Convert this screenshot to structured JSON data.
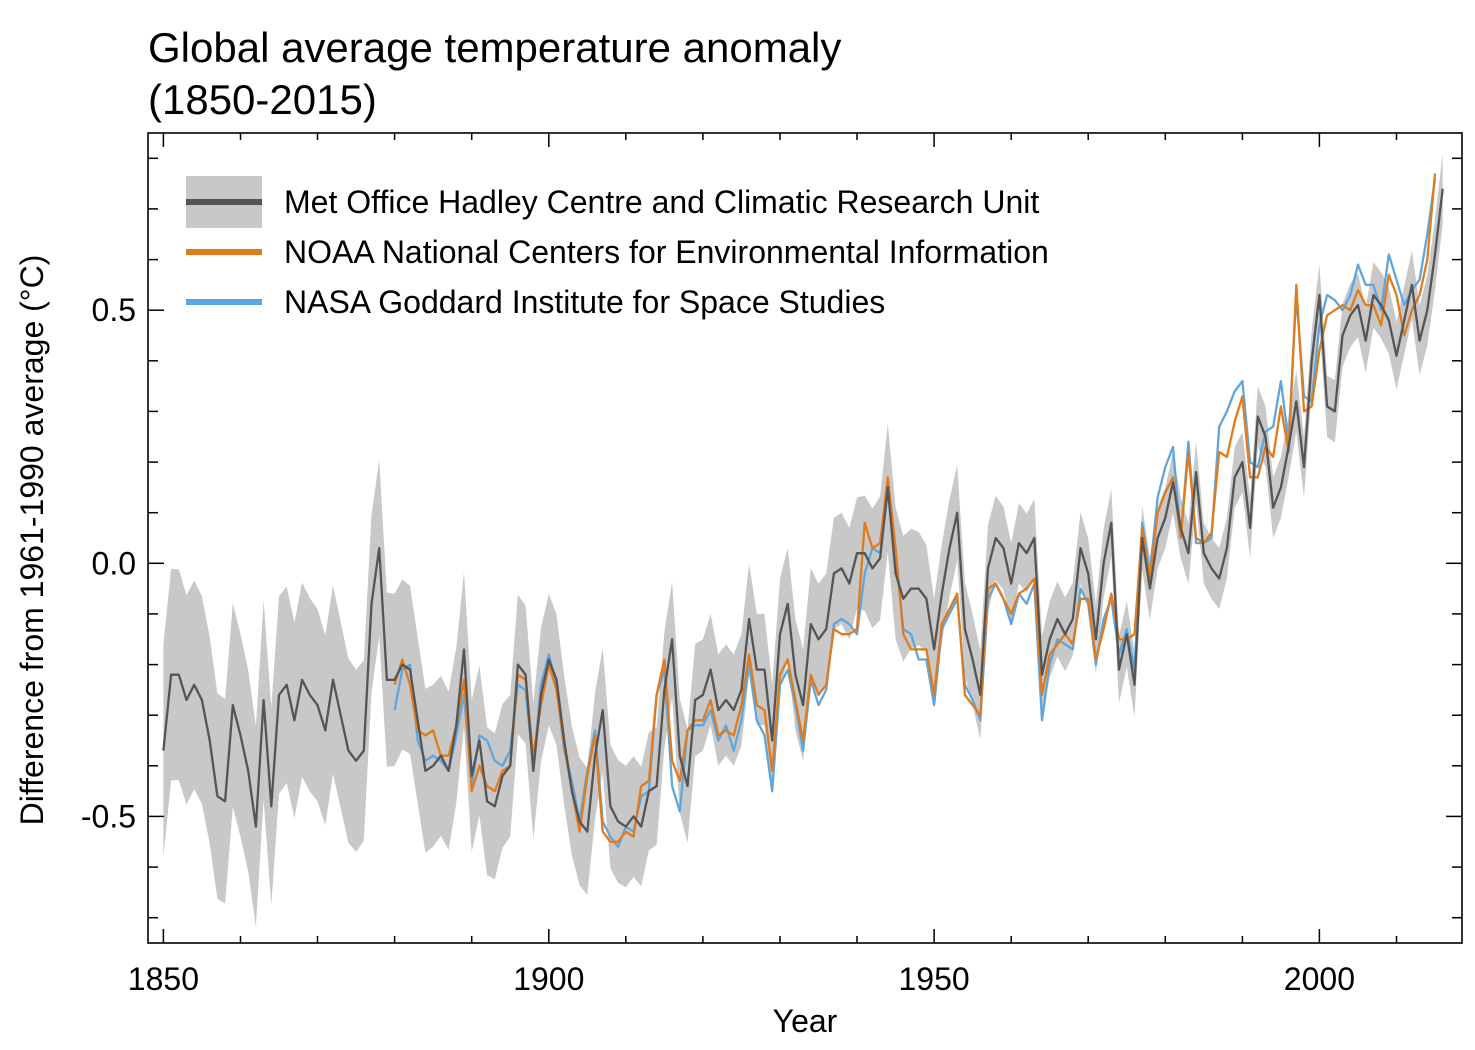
{
  "chart_data": {
    "type": "line",
    "title": "Global average temperature anomaly",
    "subtitle": "(1850-2015)",
    "xlabel": "Year",
    "ylabel": "Difference from 1961-1990 average (°C)",
    "xlim": [
      1848,
      2018.5
    ],
    "ylim": [
      -0.75,
      0.85
    ],
    "xticks": [
      1850,
      1900,
      1950,
      2000
    ],
    "yticks": [
      -0.5,
      0.0,
      0.5
    ],
    "ytick_labels": [
      "-0.5",
      "0.0",
      "0.5"
    ],
    "grid": false,
    "legend_position": "top-left",
    "series": [
      {
        "name": "Met Office Hadley Centre and Climatic Research Unit",
        "color": "#555555",
        "band_color": "#c8c8c8",
        "band_halfwidth": [
          [
            1850,
            0.21
          ],
          [
            1870,
            0.19
          ],
          [
            1880,
            0.17
          ],
          [
            1890,
            0.15
          ],
          [
            1900,
            0.13
          ],
          [
            1920,
            0.11
          ],
          [
            1940,
            0.11
          ],
          [
            1945,
            0.13
          ],
          [
            1950,
            0.1
          ],
          [
            1960,
            0.08
          ],
          [
            1980,
            0.06
          ],
          [
            2000,
            0.06
          ],
          [
            2015,
            0.07
          ]
        ],
        "x_start": 1850,
        "values": [
          -0.37,
          -0.22,
          -0.22,
          -0.27,
          -0.24,
          -0.27,
          -0.35,
          -0.46,
          -0.47,
          -0.28,
          -0.34,
          -0.41,
          -0.52,
          -0.27,
          -0.48,
          -0.26,
          -0.24,
          -0.31,
          -0.23,
          -0.26,
          -0.28,
          -0.33,
          -0.23,
          -0.3,
          -0.37,
          -0.39,
          -0.37,
          -0.08,
          0.03,
          -0.23,
          -0.23,
          -0.2,
          -0.21,
          -0.31,
          -0.41,
          -0.4,
          -0.38,
          -0.41,
          -0.32,
          -0.17,
          -0.42,
          -0.35,
          -0.47,
          -0.48,
          -0.42,
          -0.4,
          -0.2,
          -0.22,
          -0.41,
          -0.26,
          -0.19,
          -0.23,
          -0.35,
          -0.45,
          -0.51,
          -0.53,
          -0.38,
          -0.29,
          -0.48,
          -0.51,
          -0.52,
          -0.5,
          -0.52,
          -0.45,
          -0.44,
          -0.25,
          -0.15,
          -0.38,
          -0.44,
          -0.27,
          -0.26,
          -0.21,
          -0.29,
          -0.27,
          -0.29,
          -0.25,
          -0.11,
          -0.21,
          -0.21,
          -0.35,
          -0.14,
          -0.08,
          -0.22,
          -0.28,
          -0.12,
          -0.15,
          -0.13,
          -0.02,
          -0.01,
          -0.04,
          0.02,
          0.02,
          -0.01,
          0.01,
          0.15,
          -0.02,
          -0.07,
          -0.05,
          -0.05,
          -0.07,
          -0.17,
          -0.06,
          0.03,
          0.1,
          -0.13,
          -0.19,
          -0.26,
          -0.01,
          0.05,
          0.03,
          -0.04,
          0.04,
          0.02,
          0.05,
          -0.22,
          -0.15,
          -0.11,
          -0.14,
          -0.11,
          0.03,
          -0.02,
          -0.15,
          0.0,
          0.08,
          -0.21,
          -0.14,
          -0.24,
          0.05,
          -0.05,
          0.05,
          0.09,
          0.16,
          0.07,
          0.02,
          0.18,
          0.02,
          -0.01,
          -0.03,
          0.03,
          0.17,
          0.2,
          0.07,
          0.29,
          0.25,
          0.11,
          0.15,
          0.23,
          0.32,
          0.19,
          0.4,
          0.53,
          0.31,
          0.3,
          0.45,
          0.49,
          0.51,
          0.44,
          0.53,
          0.51,
          0.48,
          0.41,
          0.48,
          0.55,
          0.44,
          0.5,
          0.61,
          0.74
        ]
      },
      {
        "name": "NOAA National Centers for Environmental Information",
        "color": "#e07b1e",
        "x_start": 1880,
        "values": [
          -0.24,
          -0.19,
          -0.24,
          -0.33,
          -0.34,
          -0.33,
          -0.38,
          -0.38,
          -0.32,
          -0.23,
          -0.45,
          -0.4,
          -0.44,
          -0.45,
          -0.41,
          -0.4,
          -0.22,
          -0.23,
          -0.38,
          -0.28,
          -0.2,
          -0.25,
          -0.36,
          -0.45,
          -0.53,
          -0.42,
          -0.34,
          -0.53,
          -0.55,
          -0.55,
          -0.53,
          -0.54,
          -0.44,
          -0.43,
          -0.26,
          -0.19,
          -0.39,
          -0.43,
          -0.33,
          -0.31,
          -0.31,
          -0.27,
          -0.34,
          -0.33,
          -0.34,
          -0.28,
          -0.18,
          -0.28,
          -0.29,
          -0.41,
          -0.22,
          -0.19,
          -0.27,
          -0.35,
          -0.22,
          -0.26,
          -0.24,
          -0.13,
          -0.14,
          -0.14,
          -0.13,
          0.08,
          0.03,
          0.04,
          0.17,
          0.03,
          -0.14,
          -0.17,
          -0.17,
          -0.17,
          -0.26,
          -0.12,
          -0.09,
          -0.06,
          -0.26,
          -0.28,
          -0.3,
          -0.05,
          -0.04,
          -0.07,
          -0.1,
          -0.06,
          -0.05,
          -0.03,
          -0.26,
          -0.18,
          -0.16,
          -0.14,
          -0.16,
          -0.07,
          -0.07,
          -0.19,
          -0.13,
          -0.06,
          -0.15,
          -0.15,
          -0.14,
          0.07,
          -0.03,
          0.1,
          0.14,
          0.17,
          0.05,
          0.22,
          0.05,
          0.04,
          0.06,
          0.22,
          0.21,
          0.28,
          0.33,
          0.17,
          0.17,
          0.23,
          0.21,
          0.31,
          0.22,
          0.55,
          0.3,
          0.31,
          0.42,
          0.49,
          0.5,
          0.51,
          0.5,
          0.54,
          0.51,
          0.51,
          0.47,
          0.57,
          0.53,
          0.45,
          0.5,
          0.53,
          0.6,
          0.77
        ]
      },
      {
        "name": "NASA Goddard Institute for Space Studies",
        "color": "#5ea6dd",
        "x_start": 1880,
        "values": [
          -0.29,
          -0.21,
          -0.2,
          -0.35,
          -0.39,
          -0.38,
          -0.39,
          -0.41,
          -0.34,
          -0.26,
          -0.44,
          -0.34,
          -0.35,
          -0.39,
          -0.4,
          -0.37,
          -0.24,
          -0.25,
          -0.4,
          -0.24,
          -0.18,
          -0.24,
          -0.37,
          -0.43,
          -0.51,
          -0.41,
          -0.33,
          -0.51,
          -0.54,
          -0.56,
          -0.52,
          -0.53,
          -0.46,
          -0.45,
          -0.26,
          -0.21,
          -0.44,
          -0.49,
          -0.33,
          -0.32,
          -0.32,
          -0.29,
          -0.35,
          -0.32,
          -0.37,
          -0.31,
          -0.2,
          -0.31,
          -0.34,
          -0.45,
          -0.24,
          -0.21,
          -0.28,
          -0.37,
          -0.23,
          -0.28,
          -0.25,
          -0.12,
          -0.11,
          -0.12,
          -0.14,
          -0.02,
          0.03,
          0.02,
          0.14,
          0.02,
          -0.13,
          -0.14,
          -0.19,
          -0.19,
          -0.28,
          -0.13,
          -0.1,
          -0.07,
          -0.24,
          -0.27,
          -0.31,
          -0.07,
          -0.04,
          -0.07,
          -0.12,
          -0.06,
          -0.08,
          -0.04,
          -0.31,
          -0.2,
          -0.15,
          -0.16,
          -0.17,
          -0.05,
          -0.08,
          -0.2,
          -0.11,
          -0.07,
          -0.18,
          -0.13,
          -0.21,
          0.08,
          -0.02,
          0.13,
          0.19,
          0.23,
          0.05,
          0.24,
          0.04,
          0.04,
          0.05,
          0.27,
          0.3,
          0.34,
          0.36,
          0.2,
          0.19,
          0.26,
          0.27,
          0.36,
          0.24,
          0.53,
          0.33,
          0.32,
          0.47,
          0.53,
          0.52,
          0.5,
          0.53,
          0.59,
          0.55,
          0.55,
          0.5,
          0.61,
          0.56,
          0.51,
          0.54,
          0.56,
          0.65,
          0.76
        ]
      }
    ]
  }
}
